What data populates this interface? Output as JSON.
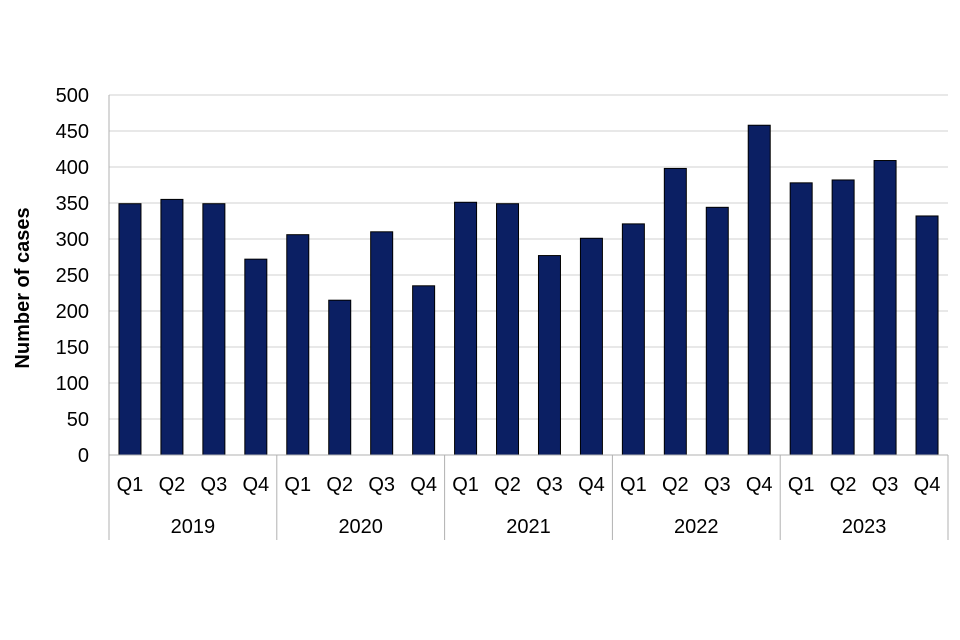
{
  "chart_data": {
    "type": "bar",
    "title": "",
    "xlabel": "",
    "ylabel": "Number of cases",
    "ylim": [
      0,
      500
    ],
    "yticks": [
      0,
      50,
      100,
      150,
      200,
      250,
      300,
      350,
      400,
      450,
      500
    ],
    "grid": true,
    "legend": "none",
    "bar_color": "#0b1f63",
    "groups": [
      "2019",
      "2020",
      "2021",
      "2022",
      "2023"
    ],
    "categories": [
      "Q1",
      "Q2",
      "Q3",
      "Q4",
      "Q1",
      "Q2",
      "Q3",
      "Q4",
      "Q1",
      "Q2",
      "Q3",
      "Q4",
      "Q1",
      "Q2",
      "Q3",
      "Q4",
      "Q1",
      "Q2",
      "Q3",
      "Q4"
    ],
    "values": [
      349,
      355,
      349,
      272,
      306,
      215,
      310,
      235,
      351,
      349,
      277,
      301,
      321,
      398,
      344,
      458,
      378,
      382,
      409,
      332
    ]
  }
}
